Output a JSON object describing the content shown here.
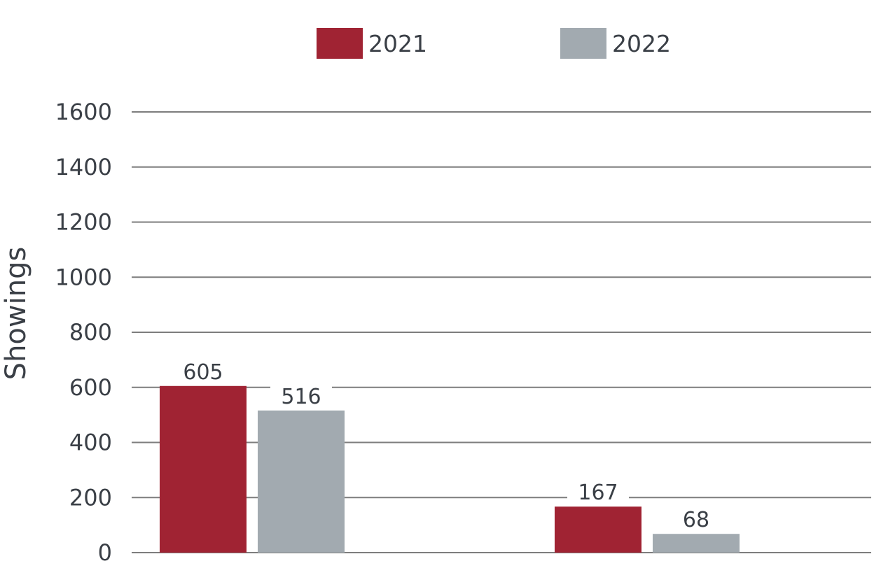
{
  "chart_data": {
    "type": "bar",
    "categories": [
      "",
      ""
    ],
    "series": [
      {
        "name": "2021",
        "values": [
          605,
          167
        ],
        "color": "#a02333"
      },
      {
        "name": "2022",
        "values": [
          516,
          68
        ],
        "color": "#a2aab0"
      }
    ],
    "ylabel": "Showings",
    "xlabel": "",
    "ylim": [
      0,
      1600
    ],
    "yticks": [
      0,
      200,
      400,
      600,
      800,
      1000,
      1200,
      1400,
      1600
    ],
    "grid": true,
    "legend_position": "top-center"
  }
}
